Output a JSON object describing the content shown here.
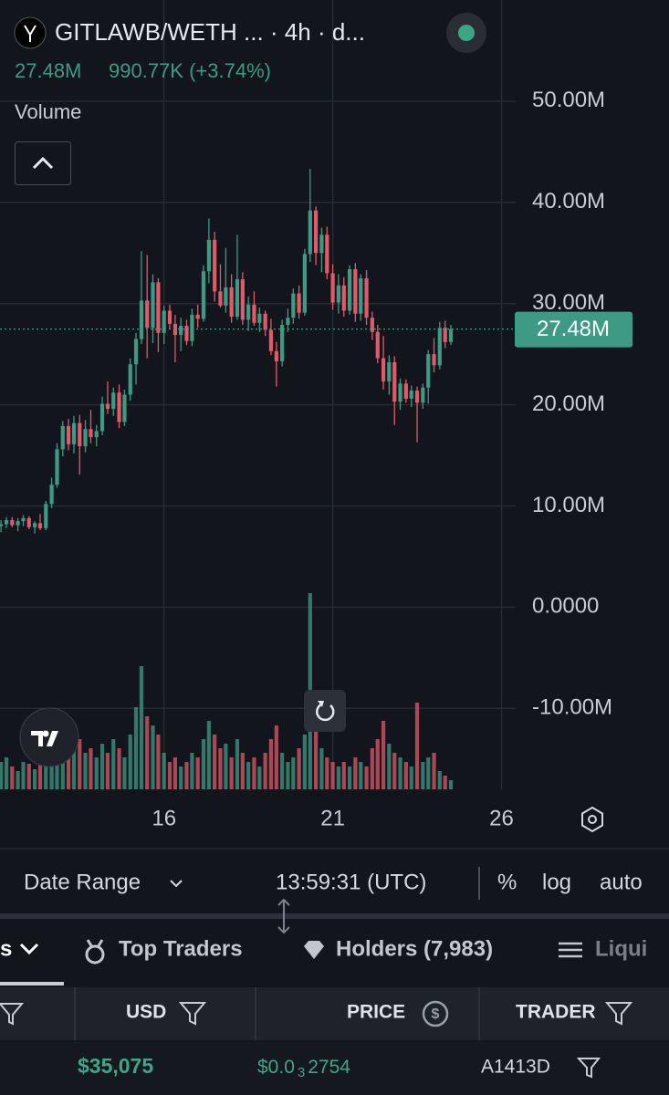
{
  "header": {
    "title": "GITLAWB/WETH ... · 4h · d...",
    "price": "27.48M",
    "change": "990.77K (+3.74%)",
    "volume_label": "Volume"
  },
  "chart_data": {
    "type": "candlestick",
    "x": [
      11.17,
      11.33,
      11.5,
      11.67,
      11.83,
      12,
      12.17,
      12.33,
      12.5,
      12.67,
      12.83,
      13,
      13.17,
      13.33,
      13.5,
      13.67,
      13.83,
      14,
      14.17,
      14.33,
      14.5,
      14.67,
      14.83,
      15,
      15.17,
      15.33,
      15.5,
      15.67,
      15.83,
      16,
      16.17,
      16.33,
      16.5,
      16.67,
      16.83,
      17,
      17.17,
      17.33,
      17.5,
      17.67,
      17.83,
      18,
      18.17,
      18.33,
      18.5,
      18.67,
      18.83,
      19,
      19.17,
      19.33,
      19.5,
      19.67,
      19.83,
      20,
      20.17,
      20.33,
      20.5,
      20.67,
      20.83,
      21,
      21.17,
      21.33,
      21.5,
      21.67,
      21.83,
      22,
      22.17,
      22.33,
      22.5,
      22.67,
      22.83,
      23,
      23.17,
      23.33,
      23.5,
      23.67,
      23.83,
      24,
      24.17,
      24.33,
      24.5
    ],
    "open": [
      8.0,
      8.2,
      8.6,
      8.1,
      8.5,
      8.8,
      7.9,
      8.3,
      7.8,
      10.2,
      12.1,
      15.6,
      17.9,
      16.1,
      18.2,
      15.9,
      17.6,
      16.8,
      17.4,
      20.1,
      19.6,
      21.2,
      18.3,
      21.0,
      24.0,
      26.5,
      30.3,
      27.6,
      32.1,
      27.1,
      29.3,
      28.0,
      26.9,
      27.8,
      26.3,
      28.9,
      28.5,
      33.2,
      36.3,
      31.2,
      29.8,
      31.6,
      28.7,
      32.4,
      28.4,
      29.9,
      28.1,
      29.0,
      27.4,
      25.3,
      24.3,
      27.9,
      28.6,
      31.0,
      29.1,
      34.9,
      39.2,
      35.0,
      36.8,
      33.0,
      30.1,
      31.8,
      29.3,
      33.4,
      29.0,
      32.5,
      28.6,
      27.2,
      24.6,
      22.3,
      24.2,
      20.3,
      22.1,
      20.6,
      21.4,
      20.2,
      21.7,
      25.0,
      23.9,
      27.6,
      26.2
    ],
    "high": [
      8.6,
      8.9,
      8.9,
      8.8,
      9.1,
      9.0,
      8.5,
      9.2,
      10.5,
      12.8,
      16.2,
      18.4,
      18.6,
      18.9,
      19.0,
      18.5,
      19.5,
      18.0,
      20.8,
      22.3,
      21.7,
      22.0,
      21.5,
      24.6,
      27.1,
      35.2,
      34.8,
      32.9,
      32.5,
      29.8,
      29.9,
      28.9,
      28.6,
      28.4,
      29.5,
      29.9,
      33.8,
      38.4,
      37.1,
      33.9,
      35.5,
      32.9,
      36.8,
      33.1,
      30.7,
      31.2,
      29.6,
      29.3,
      28.5,
      26.2,
      28.4,
      29.5,
      31.5,
      31.8,
      35.4,
      43.3,
      39.6,
      37.5,
      37.6,
      33.9,
      32.9,
      32.6,
      33.8,
      34.0,
      32.9,
      33.3,
      29.2,
      27.9,
      26.8,
      24.9,
      24.8,
      22.6,
      22.5,
      21.9,
      21.8,
      22.1,
      25.4,
      26.6,
      28.2,
      28.3,
      27.9
    ],
    "low": [
      7.4,
      7.8,
      7.9,
      7.5,
      8.0,
      7.7,
      7.3,
      7.6,
      7.6,
      9.8,
      11.8,
      14.9,
      15.5,
      15.2,
      13.1,
      15.3,
      16.2,
      15.9,
      17.0,
      19.1,
      18.9,
      17.7,
      17.9,
      20.4,
      22.0,
      26.0,
      24.6,
      26.1,
      25.2,
      26.0,
      27.5,
      24.2,
      25.3,
      25.9,
      25.8,
      27.6,
      28.2,
      32.0,
      30.2,
      29.6,
      29.1,
      28.1,
      28.4,
      27.9,
      27.3,
      27.8,
      27.2,
      26.8,
      24.9,
      21.8,
      23.8,
      27.2,
      28.0,
      28.5,
      28.8,
      34.1,
      33.8,
      33.1,
      32.4,
      29.4,
      29.0,
      28.7,
      28.9,
      28.2,
      28.3,
      27.9,
      26.4,
      24.1,
      21.5,
      21.0,
      18.0,
      19.5,
      20.2,
      19.8,
      16.3,
      19.6,
      20.1,
      23.2,
      23.5,
      25.6,
      25.9
    ],
    "close": [
      8.2,
      8.6,
      8.1,
      8.5,
      8.8,
      7.9,
      8.3,
      7.8,
      10.2,
      12.1,
      15.6,
      17.9,
      16.1,
      18.2,
      15.9,
      17.6,
      16.8,
      17.4,
      20.1,
      19.6,
      21.2,
      18.3,
      21.0,
      24.0,
      26.5,
      30.3,
      27.6,
      32.1,
      27.1,
      29.3,
      28.0,
      26.9,
      27.8,
      26.3,
      28.9,
      28.5,
      33.2,
      36.3,
      31.2,
      29.8,
      31.6,
      28.7,
      32.4,
      28.4,
      29.9,
      28.1,
      29.0,
      27.4,
      25.3,
      24.3,
      27.9,
      28.6,
      31.0,
      29.1,
      34.9,
      39.2,
      35.0,
      36.8,
      33.0,
      30.1,
      31.8,
      29.3,
      33.4,
      29.0,
      32.5,
      28.6,
      27.2,
      24.6,
      22.3,
      24.2,
      20.3,
      22.1,
      20.6,
      21.4,
      20.2,
      21.7,
      25.0,
      23.9,
      27.6,
      26.2,
      27.48
    ],
    "volume": [
      30,
      35,
      25,
      20,
      30,
      28,
      22,
      30,
      45,
      40,
      55,
      60,
      45,
      50,
      55,
      40,
      45,
      35,
      50,
      40,
      55,
      45,
      35,
      60,
      90,
      135,
      80,
      70,
      60,
      40,
      30,
      35,
      25,
      30,
      40,
      35,
      55,
      75,
      60,
      45,
      50,
      35,
      55,
      40,
      30,
      35,
      25,
      40,
      55,
      70,
      40,
      30,
      35,
      45,
      60,
      215,
      70,
      45,
      35,
      30,
      25,
      30,
      25,
      35,
      30,
      25,
      45,
      55,
      75,
      50,
      40,
      35,
      30,
      25,
      95,
      30,
      35,
      40,
      20,
      15,
      10
    ],
    "xlim": [
      11.14,
      26.42
    ],
    "xticks": [
      16,
      21,
      26
    ],
    "ylim": [
      -18,
      60
    ],
    "yticks": [
      {
        "value": 50,
        "label": "50.00M"
      },
      {
        "value": 40,
        "label": "40.00M"
      },
      {
        "value": 30,
        "label": "30.00M"
      },
      {
        "value": 20,
        "label": "20.00M"
      },
      {
        "value": 10,
        "label": "10.00M"
      },
      {
        "value": 0,
        "label": "0.0000"
      },
      {
        "value": -10,
        "label": "-10.00M"
      }
    ],
    "last_price_label": "27.48M",
    "up_color": "#3d9a85",
    "down_color": "#e05a6a",
    "grid": true
  },
  "toolbar": {
    "date_range": "Date Range",
    "time": "13:59:31 (UTC)",
    "percent": "%",
    "log": "log",
    "auto": "auto"
  },
  "tabs": [
    "s",
    "Top Traders",
    "Holders (7,983)",
    "Liqui"
  ],
  "table": {
    "columns": [
      "USD",
      "PRICE",
      "TRADER"
    ],
    "rows": [
      [
        "$35,075",
        {
          "prefix": "$0.0",
          "subscript": "3",
          "rest": "2754"
        },
        "A1413D"
      ]
    ]
  }
}
